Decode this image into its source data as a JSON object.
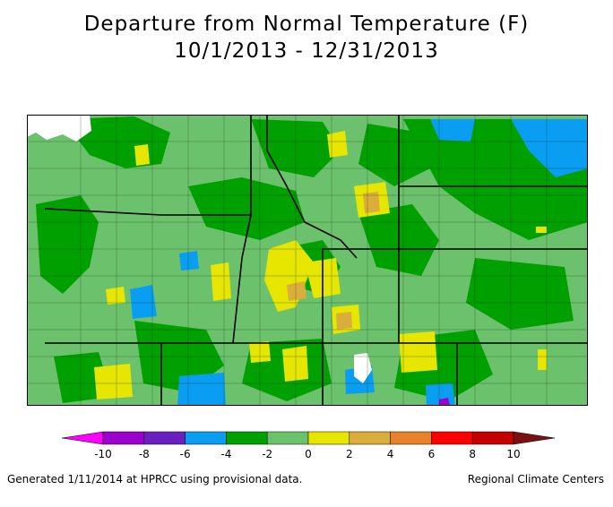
{
  "title": {
    "line1": "Departure from Normal Temperature (F)",
    "line2": "10/1/2013 - 12/31/2013"
  },
  "legend": {
    "ticks": [
      "-10",
      "-8",
      "-6",
      "-4",
      "-2",
      "0",
      "2",
      "4",
      "6",
      "8",
      "10"
    ],
    "colors": [
      "#ff00ff",
      "#9b00cc",
      "#6a1fc0",
      "#0a9ef2",
      "#00a000",
      "#6cc26c",
      "#e6e600",
      "#dbad3b",
      "#e8822a",
      "#ff0000",
      "#c40000",
      "#7a1010"
    ],
    "bins": [
      {
        "from": null,
        "to": -10,
        "color": "#ff00ff"
      },
      {
        "from": -10,
        "to": -8,
        "color": "#9b00cc"
      },
      {
        "from": -8,
        "to": -6,
        "color": "#6a1fc0"
      },
      {
        "from": -6,
        "to": -4,
        "color": "#0a9ef2"
      },
      {
        "from": -4,
        "to": -2,
        "color": "#00a000"
      },
      {
        "from": -2,
        "to": 0,
        "color": "#6cc26c"
      },
      {
        "from": 0,
        "to": 2,
        "color": "#e6e600"
      },
      {
        "from": 2,
        "to": 4,
        "color": "#dbad3b"
      },
      {
        "from": 4,
        "to": 6,
        "color": "#e8822a"
      },
      {
        "from": 6,
        "to": 8,
        "color": "#ff0000"
      },
      {
        "from": 8,
        "to": 10,
        "color": "#c40000"
      },
      {
        "from": 10,
        "to": null,
        "color": "#7a1010"
      }
    ]
  },
  "footer": {
    "left": "Generated 1/11/2014 at HPRCC using provisional data.",
    "right": "Regional Climate Centers"
  }
}
